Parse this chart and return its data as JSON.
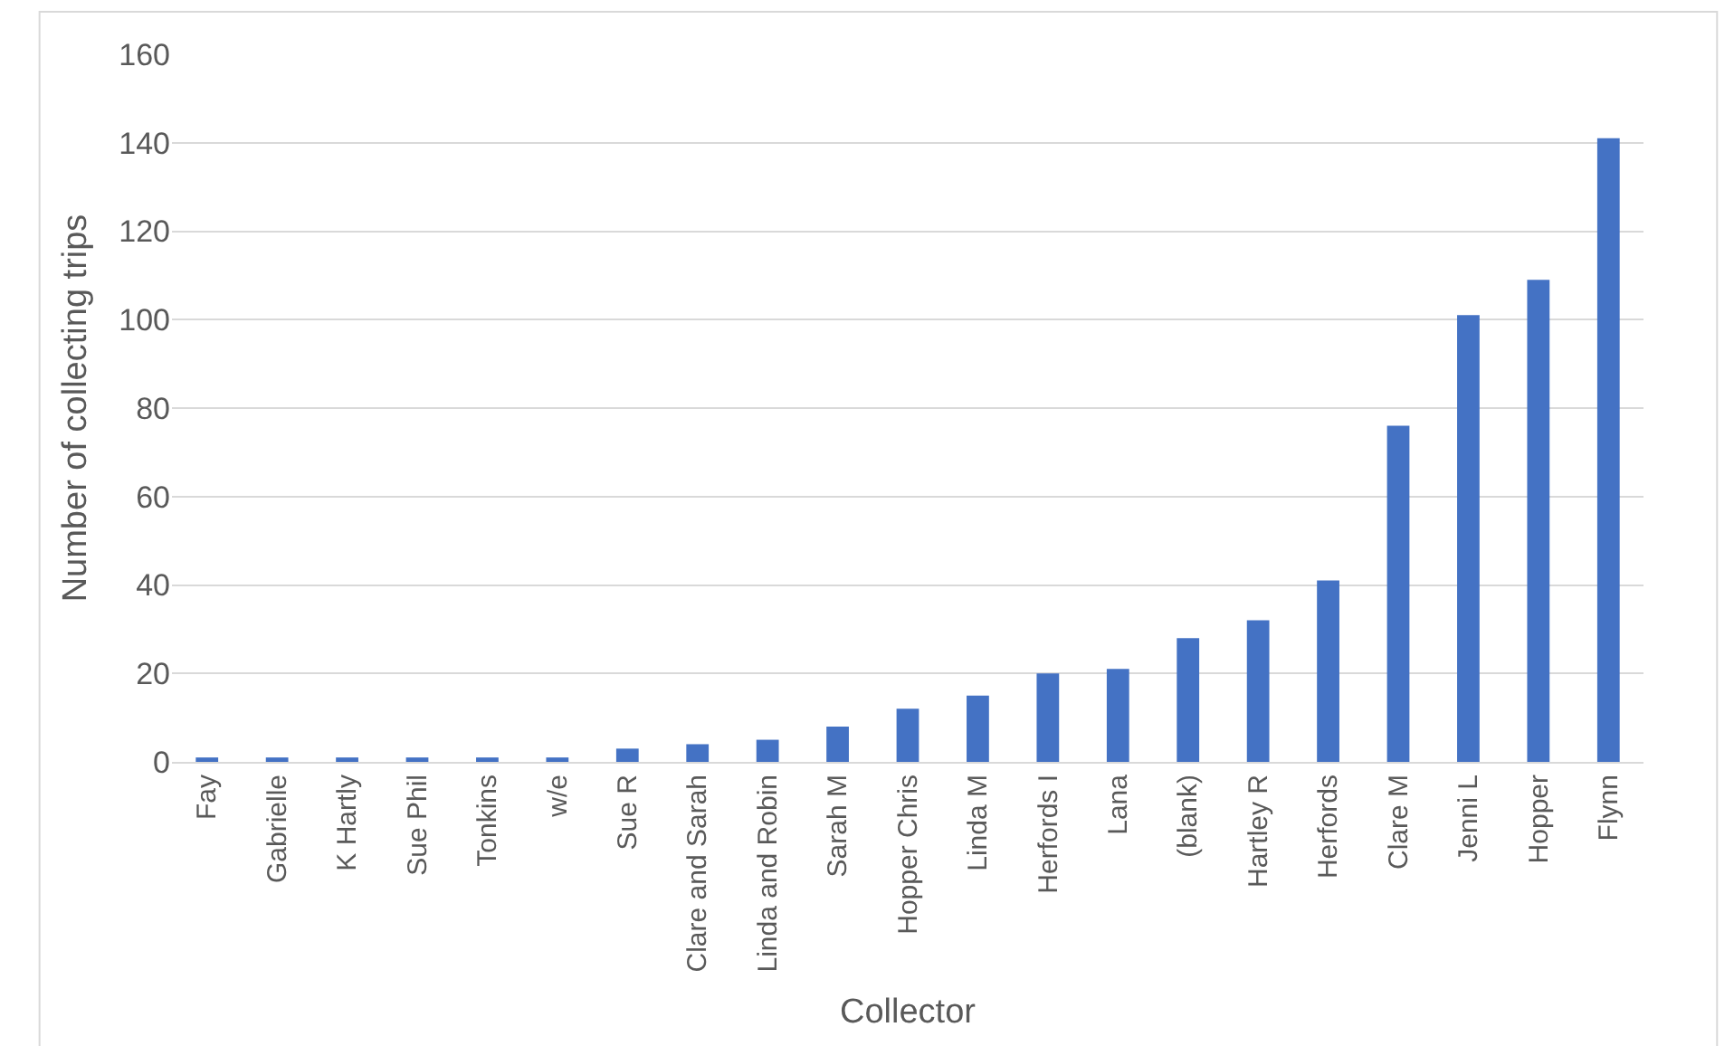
{
  "chart_data": {
    "type": "bar",
    "xlabel": "Collector",
    "ylabel": "Number of collecting trips",
    "categories": [
      "Fay",
      "Gabrielle",
      "K Hartly",
      "Sue Phil",
      "Tonkins",
      "w/e",
      "Sue R",
      "Clare and Sarah",
      "Linda and Robin",
      "Sarah M",
      "Hopper Chris",
      "Linda M",
      "Herfords I",
      "Lana",
      "(blank)",
      "Hartley R",
      "Herfords",
      "Clare M",
      "Jenni L",
      "Hopper",
      "Flynn"
    ],
    "values": [
      1,
      1,
      1,
      1,
      1,
      1,
      3,
      4,
      5,
      8,
      12,
      15,
      20,
      21,
      28,
      32,
      41,
      76,
      101,
      109,
      141
    ],
    "color": "#4472c4",
    "ylim": [
      0,
      160
    ],
    "yticks": [
      0,
      20,
      40,
      60,
      80,
      100,
      120,
      140,
      160
    ],
    "grid": "y"
  }
}
